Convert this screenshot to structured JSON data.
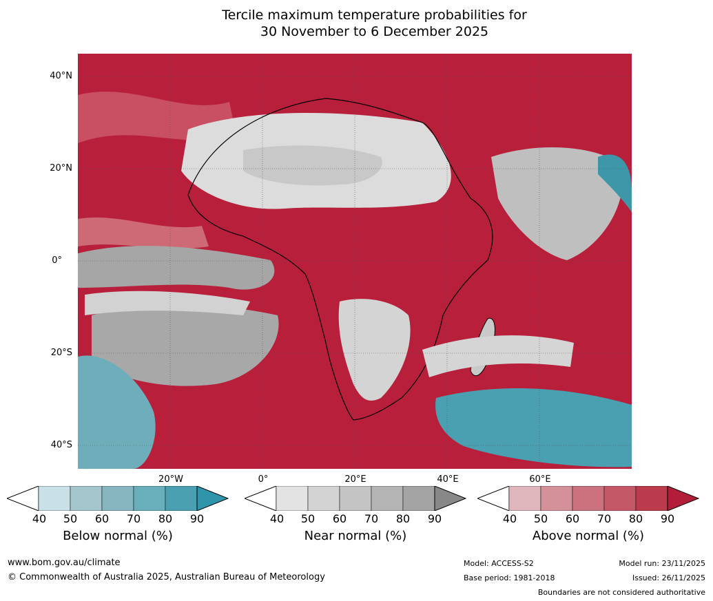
{
  "title": {
    "line1": "Tercile maximum temperature probabilities for",
    "line2": "30 November to 6 December 2025"
  },
  "map": {
    "lat_labels": [
      "40°N",
      "20°N",
      "0°",
      "20°S",
      "40°S"
    ],
    "lon_labels": [
      "20°W",
      "0°",
      "20°E",
      "40°E",
      "60°E"
    ]
  },
  "colorbars": [
    {
      "title": "Below normal (%)",
      "ticks": [
        "40",
        "50",
        "60",
        "70",
        "80",
        "90"
      ],
      "colors": [
        "#c9e0e6",
        "#a5c6cd",
        "#87b5c0",
        "#69afbb",
        "#4a9fb0",
        "#2e95ab"
      ]
    },
    {
      "title": "Near normal (%)",
      "ticks": [
        "40",
        "50",
        "60",
        "70",
        "80",
        "90"
      ],
      "colors": [
        "#e3e3e3",
        "#d3d3d3",
        "#c4c4c4",
        "#b4b4b4",
        "#a4a4a4",
        "#888888"
      ]
    },
    {
      "title": "Above normal (%)",
      "ticks": [
        "40",
        "50",
        "60",
        "70",
        "80",
        "90"
      ],
      "colors": [
        "#e0b6bd",
        "#d59199",
        "#cc727e",
        "#c45867",
        "#bb3a4c",
        "#b21d3a"
      ]
    }
  ],
  "footer": {
    "website": "www.bom.gov.au/climate",
    "copyright": "© Commonwealth of Australia 2025, Australian Bureau of Meteorology",
    "model": "Model: ACCESS-S2",
    "base_period": "Base period: 1981-2018",
    "model_run": "Model run: 23/11/2025",
    "issued": "Issued: 26/11/2025",
    "disclaimer": "Boundaries are not considered authoritative"
  }
}
